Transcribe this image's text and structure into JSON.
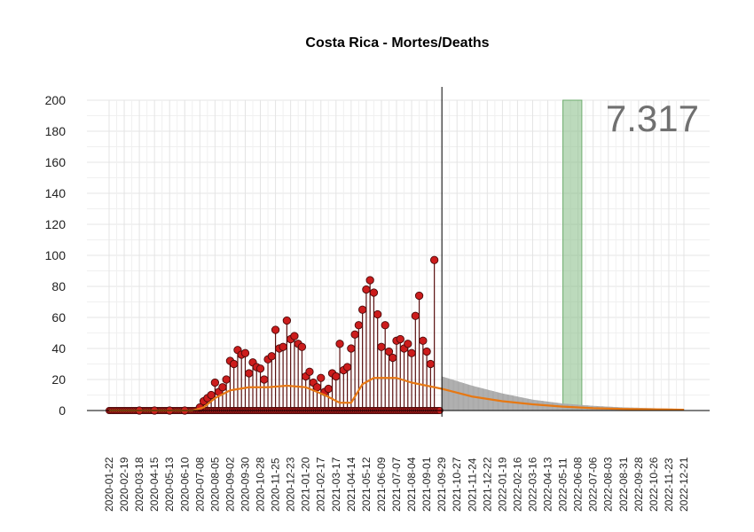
{
  "chart_data": {
    "type": "scatter",
    "title": "Costa Rica - Mortes/Deaths",
    "xlabel": "",
    "ylabel": "",
    "ylim": [
      0,
      200
    ],
    "y_ticks": [
      0,
      20,
      40,
      60,
      80,
      100,
      120,
      140,
      160,
      180,
      200
    ],
    "x_start": "2020-01-22",
    "x_end": "2022-12-21",
    "x_tick_labels": [
      "2020-01-22",
      "2020-02-19",
      "2020-03-18",
      "2020-04-15",
      "2020-05-13",
      "2020-06-10",
      "2020-07-08",
      "2020-08-05",
      "2020-09-02",
      "2020-09-30",
      "2020-10-28",
      "2020-11-25",
      "2020-12-23",
      "2021-01-20",
      "2021-02-17",
      "2021-03-17",
      "2021-04-14",
      "2021-05-12",
      "2021-06-09",
      "2021-07-07",
      "2021-08-04",
      "2021-09-01",
      "2021-09-29",
      "2021-10-27",
      "2021-11-24",
      "2021-12-22",
      "2022-01-19",
      "2022-02-16",
      "2022-03-16",
      "2022-04-13",
      "2022-05-11",
      "2022-06-08",
      "2022-07-06",
      "2022-08-03",
      "2022-08-31",
      "2022-09-28",
      "2022-10-26",
      "2022-11-23",
      "2022-12-21"
    ],
    "vertical_line_date": "2021-09-29",
    "highlight_band": {
      "from": "2022-05-11",
      "to": "2022-06-15",
      "color": "#8fc18f"
    },
    "annotation": "7.317",
    "daily_deaths": [
      {
        "date": "2020-03-18",
        "value": 0
      },
      {
        "date": "2020-04-15",
        "value": 0
      },
      {
        "date": "2020-05-13",
        "value": 0
      },
      {
        "date": "2020-06-10",
        "value": 0
      },
      {
        "date": "2020-07-08",
        "value": 2
      },
      {
        "date": "2020-07-15",
        "value": 6
      },
      {
        "date": "2020-07-22",
        "value": 8
      },
      {
        "date": "2020-07-29",
        "value": 10
      },
      {
        "date": "2020-08-05",
        "value": 18
      },
      {
        "date": "2020-08-12",
        "value": 12
      },
      {
        "date": "2020-08-19",
        "value": 15
      },
      {
        "date": "2020-08-26",
        "value": 20
      },
      {
        "date": "2020-09-02",
        "value": 32
      },
      {
        "date": "2020-09-09",
        "value": 30
      },
      {
        "date": "2020-09-16",
        "value": 39
      },
      {
        "date": "2020-09-23",
        "value": 36
      },
      {
        "date": "2020-09-30",
        "value": 37
      },
      {
        "date": "2020-10-07",
        "value": 24
      },
      {
        "date": "2020-10-14",
        "value": 31
      },
      {
        "date": "2020-10-21",
        "value": 28
      },
      {
        "date": "2020-10-28",
        "value": 27
      },
      {
        "date": "2020-11-04",
        "value": 20
      },
      {
        "date": "2020-11-11",
        "value": 33
      },
      {
        "date": "2020-11-18",
        "value": 35
      },
      {
        "date": "2020-11-25",
        "value": 52
      },
      {
        "date": "2020-12-02",
        "value": 40
      },
      {
        "date": "2020-12-09",
        "value": 41
      },
      {
        "date": "2020-12-16",
        "value": 58
      },
      {
        "date": "2020-12-23",
        "value": 46
      },
      {
        "date": "2020-12-30",
        "value": 48
      },
      {
        "date": "2021-01-06",
        "value": 43
      },
      {
        "date": "2021-01-13",
        "value": 41
      },
      {
        "date": "2021-01-20",
        "value": 22
      },
      {
        "date": "2021-01-27",
        "value": 25
      },
      {
        "date": "2021-02-03",
        "value": 18
      },
      {
        "date": "2021-02-10",
        "value": 15
      },
      {
        "date": "2021-02-17",
        "value": 21
      },
      {
        "date": "2021-02-24",
        "value": 12
      },
      {
        "date": "2021-03-03",
        "value": 14
      },
      {
        "date": "2021-03-10",
        "value": 24
      },
      {
        "date": "2021-03-17",
        "value": 22
      },
      {
        "date": "2021-03-24",
        "value": 43
      },
      {
        "date": "2021-03-31",
        "value": 26
      },
      {
        "date": "2021-04-07",
        "value": 28
      },
      {
        "date": "2021-04-14",
        "value": 40
      },
      {
        "date": "2021-04-21",
        "value": 49
      },
      {
        "date": "2021-04-28",
        "value": 55
      },
      {
        "date": "2021-05-05",
        "value": 65
      },
      {
        "date": "2021-05-12",
        "value": 78
      },
      {
        "date": "2021-05-19",
        "value": 84
      },
      {
        "date": "2021-05-26",
        "value": 76
      },
      {
        "date": "2021-06-02",
        "value": 62
      },
      {
        "date": "2021-06-09",
        "value": 41
      },
      {
        "date": "2021-06-16",
        "value": 55
      },
      {
        "date": "2021-06-23",
        "value": 38
      },
      {
        "date": "2021-06-30",
        "value": 34
      },
      {
        "date": "2021-07-07",
        "value": 45
      },
      {
        "date": "2021-07-14",
        "value": 46
      },
      {
        "date": "2021-07-21",
        "value": 40
      },
      {
        "date": "2021-07-28",
        "value": 43
      },
      {
        "date": "2021-08-04",
        "value": 37
      },
      {
        "date": "2021-08-11",
        "value": 61
      },
      {
        "date": "2021-08-18",
        "value": 74
      },
      {
        "date": "2021-08-25",
        "value": 45
      },
      {
        "date": "2021-09-01",
        "value": 38
      },
      {
        "date": "2021-09-08",
        "value": 30
      },
      {
        "date": "2021-09-15",
        "value": 97
      }
    ],
    "trend": [
      {
        "date": "2020-01-22",
        "value": 0
      },
      {
        "date": "2020-06-24",
        "value": 0
      },
      {
        "date": "2020-07-15",
        "value": 2
      },
      {
        "date": "2020-08-05",
        "value": 8
      },
      {
        "date": "2020-09-02",
        "value": 13
      },
      {
        "date": "2020-10-07",
        "value": 15
      },
      {
        "date": "2020-11-11",
        "value": 15
      },
      {
        "date": "2020-12-16",
        "value": 16
      },
      {
        "date": "2021-01-20",
        "value": 15
      },
      {
        "date": "2021-02-24",
        "value": 10
      },
      {
        "date": "2021-03-24",
        "value": 5
      },
      {
        "date": "2021-04-14",
        "value": 5
      },
      {
        "date": "2021-05-05",
        "value": 17
      },
      {
        "date": "2021-05-26",
        "value": 21
      },
      {
        "date": "2021-07-07",
        "value": 21
      },
      {
        "date": "2021-08-04",
        "value": 18
      },
      {
        "date": "2021-09-29",
        "value": 14
      },
      {
        "date": "2021-11-24",
        "value": 9
      },
      {
        "date": "2022-01-19",
        "value": 6
      },
      {
        "date": "2022-03-16",
        "value": 4
      },
      {
        "date": "2022-05-11",
        "value": 2.5
      },
      {
        "date": "2022-07-06",
        "value": 1.5
      },
      {
        "date": "2022-08-31",
        "value": 1
      },
      {
        "date": "2022-12-21",
        "value": 0.5
      }
    ],
    "forecast_upper": [
      {
        "date": "2021-09-29",
        "value": 22
      },
      {
        "date": "2021-11-24",
        "value": 16
      },
      {
        "date": "2022-01-19",
        "value": 11
      },
      {
        "date": "2022-03-16",
        "value": 7
      },
      {
        "date": "2022-05-11",
        "value": 4.5
      },
      {
        "date": "2022-07-06",
        "value": 3
      },
      {
        "date": "2022-08-31",
        "value": 2
      },
      {
        "date": "2022-10-26",
        "value": 1.5
      },
      {
        "date": "2022-12-21",
        "value": 1
      }
    ],
    "colors": {
      "points": "#cc1c1c",
      "stems": "#5a1010",
      "trend": "#e67814",
      "forecast": "#b3b3b3",
      "grid": "#e4e4e4"
    }
  }
}
